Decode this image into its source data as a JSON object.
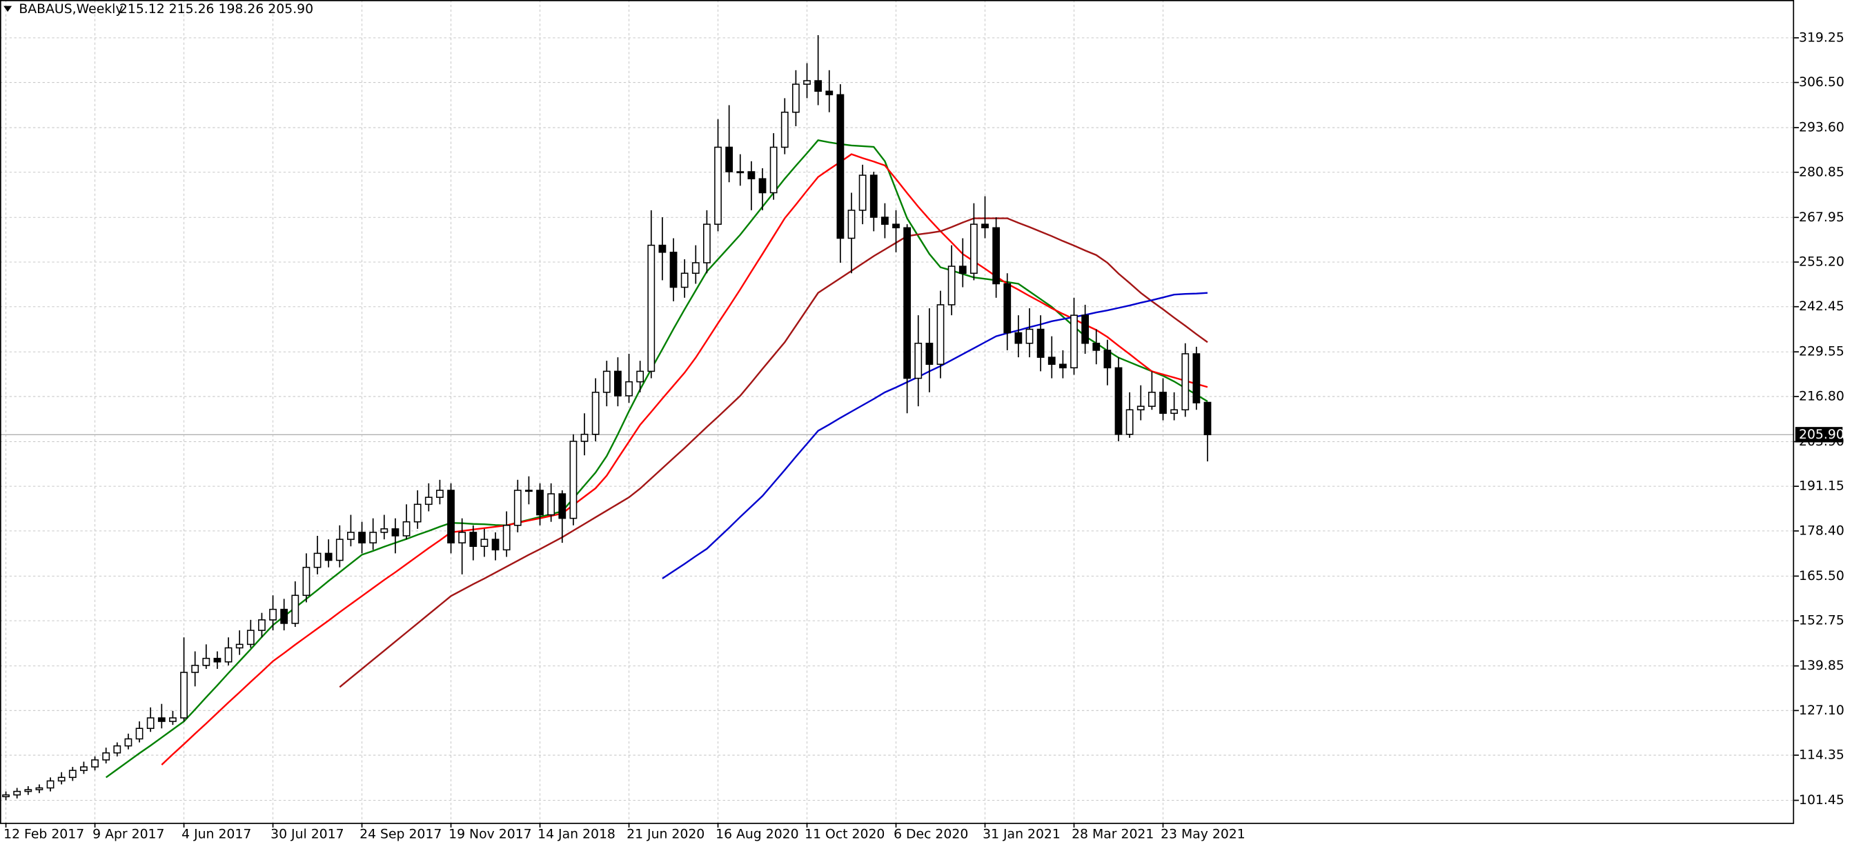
{
  "chart_data": {
    "type": "candlestick",
    "title": "BABAUS,Weekly",
    "info": "215.12 215.26 198.26 205.90",
    "categories": [
      "12 Feb 2017",
      null,
      null,
      null,
      null,
      null,
      null,
      null,
      "9 Apr 2017",
      null,
      null,
      null,
      null,
      null,
      null,
      null,
      "4 Jun 2017",
      null,
      null,
      null,
      null,
      null,
      null,
      null,
      "30 Jul 2017",
      null,
      null,
      null,
      null,
      null,
      null,
      null,
      "24 Sep 2017",
      null,
      null,
      null,
      null,
      null,
      null,
      null,
      "19 Nov 2017",
      null,
      null,
      null,
      null,
      null,
      null,
      null,
      "14 Jan 2018",
      null,
      null,
      null,
      null,
      null,
      null,
      null,
      "21 Jun 2020",
      null,
      null,
      null,
      null,
      null,
      null,
      null,
      "16 Aug 2020",
      null,
      null,
      null,
      null,
      null,
      null,
      null,
      "11 Oct 2020",
      null,
      null,
      null,
      null,
      null,
      null,
      null,
      "6 Dec 2020",
      null,
      null,
      null,
      null,
      null,
      null,
      null,
      "31 Jan 2021",
      null,
      null,
      null,
      null,
      null,
      null,
      null,
      "28 Mar 2021",
      null,
      null,
      null,
      null,
      null,
      null,
      null,
      "23 May 2021",
      null,
      null,
      null,
      null
    ],
    "open": [
      102.5,
      103,
      104,
      104.5,
      105,
      107,
      108,
      110,
      111,
      113,
      115,
      117,
      119,
      122,
      125,
      124,
      125,
      138,
      140,
      142,
      141,
      145,
      146,
      150,
      153,
      156,
      152,
      160,
      168,
      172,
      170,
      176,
      178,
      175,
      178,
      179,
      177,
      181,
      186,
      188,
      190,
      175,
      178,
      174,
      176,
      173,
      180,
      190,
      190,
      183,
      189,
      182,
      204,
      206,
      218,
      224,
      217,
      221,
      224,
      260,
      258,
      248,
      252,
      255,
      266,
      288,
      281,
      281,
      279,
      275,
      288,
      298,
      306,
      307,
      304,
      303,
      262,
      270,
      280,
      268,
      266,
      265,
      222,
      232,
      226,
      243,
      254,
      252,
      266,
      265,
      249,
      235,
      232,
      236,
      228,
      226,
      225,
      240,
      232,
      230,
      225,
      206,
      213,
      214,
      218,
      212,
      213,
      229,
      215.12
    ],
    "high": [
      104,
      105,
      105.5,
      106,
      108,
      109.5,
      111,
      112.5,
      114,
      116.5,
      118,
      120.5,
      124,
      128,
      129,
      127,
      148,
      144,
      146,
      144,
      148,
      150,
      153,
      155,
      160,
      159,
      164,
      172,
      177,
      176,
      180,
      183,
      181,
      182,
      183,
      182,
      186,
      190,
      192,
      193,
      192,
      182,
      180,
      179,
      178,
      184,
      193,
      194,
      192,
      192,
      190,
      206,
      212,
      222,
      227,
      228,
      229,
      227,
      270,
      268,
      262,
      256,
      260,
      270,
      296,
      300,
      286,
      284,
      282,
      292,
      302,
      310,
      312,
      320,
      310,
      306,
      275,
      283,
      281,
      272,
      270,
      266,
      240,
      242,
      247,
      260,
      262,
      272,
      274,
      268,
      252,
      240,
      242,
      240,
      234,
      230,
      245,
      243,
      236,
      233,
      228,
      218,
      220,
      224,
      222,
      218,
      232,
      231,
      215.26
    ],
    "low": [
      101.5,
      102,
      103,
      103.5,
      104,
      106,
      107,
      109,
      110,
      112,
      114,
      116,
      118,
      121,
      122,
      123,
      124,
      134,
      139,
      139,
      140,
      143,
      145,
      148,
      150,
      150,
      151,
      158,
      166,
      168,
      168,
      174,
      172,
      173,
      176,
      172,
      176,
      179,
      184,
      186,
      172,
      166,
      170,
      171,
      170,
      171,
      178,
      186,
      180,
      181,
      175,
      180,
      200,
      204,
      214,
      214,
      215,
      218,
      222,
      250,
      244,
      245,
      249,
      252,
      264,
      278,
      277,
      270,
      270,
      273,
      286,
      294,
      302,
      300,
      298,
      255,
      252,
      266,
      264,
      262,
      258,
      212,
      214,
      218,
      222,
      240,
      248,
      250,
      262,
      245,
      230,
      228,
      228,
      224,
      222,
      222,
      223,
      229,
      226,
      220,
      204,
      205,
      210,
      213,
      210,
      210,
      211,
      213,
      198.26
    ],
    "close": [
      103,
      104,
      104.5,
      105,
      107,
      108,
      110,
      111,
      113,
      115,
      117,
      119,
      122,
      125,
      124,
      125,
      138,
      140,
      142,
      141,
      145,
      146,
      150,
      153,
      156,
      152,
      160,
      168,
      172,
      170,
      176,
      178,
      175,
      178,
      179,
      177,
      181,
      186,
      188,
      190,
      175,
      178,
      174,
      176,
      173,
      180,
      190,
      190,
      183,
      189,
      182,
      204,
      206,
      218,
      224,
      217,
      221,
      224,
      260,
      258,
      248,
      252,
      255,
      266,
      288,
      281,
      281,
      279,
      275,
      288,
      298,
      306,
      307,
      304,
      303,
      262,
      270,
      280,
      268,
      266,
      265,
      222,
      232,
      226,
      243,
      254,
      252,
      266,
      265,
      249,
      235,
      232,
      236,
      228,
      226,
      225,
      240,
      232,
      230,
      225,
      206,
      213,
      214,
      218,
      212,
      213,
      229,
      215,
      205.9
    ],
    "up_color": "#ffffff",
    "down_color": "#000000",
    "outline_color": "#000000",
    "lines": [
      {
        "color": "#008000",
        "values": [
          null,
          null,
          null,
          null,
          null,
          null,
          null,
          null,
          null,
          108,
          110.3,
          112.6,
          114.9,
          117.1,
          119.4,
          121.7,
          124,
          127.4,
          130.9,
          134.3,
          137.8,
          141.2,
          144.6,
          148.1,
          151.5,
          154,
          156.5,
          159,
          161.5,
          164.1,
          166.6,
          169.1,
          171.6,
          172.7,
          173.9,
          175,
          176.1,
          177.3,
          178.4,
          179.6,
          180.7,
          180.6,
          180.4,
          180.3,
          180.1,
          180,
          180.8,
          181.6,
          182.4,
          183.2,
          184,
          187.7,
          191.4,
          195.1,
          199.8,
          206,
          212.6,
          218.8,
          224.6,
          230.3,
          236.1,
          241.7,
          247.1,
          252.5,
          256,
          259.5,
          263,
          267,
          271,
          275,
          279,
          282.7,
          286.3,
          290,
          289.4,
          288.9,
          288.5,
          288.3,
          288.1,
          284,
          275.8,
          267.7,
          262.6,
          257.5,
          253.7,
          252.8,
          251.8,
          250.8,
          250.4,
          250,
          249.5,
          249,
          246.8,
          244.6,
          242.4,
          239.6,
          236.8,
          234,
          232,
          229.9,
          227.9,
          226.6,
          225.3,
          224,
          222.7,
          221.1,
          219.2,
          217.3,
          215.4
        ]
      },
      {
        "color": "#ff0000",
        "values": [
          null,
          null,
          null,
          null,
          null,
          null,
          null,
          null,
          null,
          null,
          null,
          null,
          null,
          null,
          111.6,
          114.6,
          117.5,
          120.5,
          123.4,
          126.4,
          129.4,
          132.3,
          135.3,
          138.2,
          141.2,
          143.5,
          145.9,
          148.2,
          150.5,
          152.8,
          155.2,
          157.5,
          159.8,
          162.1,
          164.4,
          166.6,
          168.9,
          171.2,
          173.5,
          175.7,
          178,
          178.4,
          178.8,
          179.2,
          179.6,
          180,
          180.7,
          181.4,
          182,
          182.7,
          183.4,
          185.8,
          188.2,
          190.6,
          194.2,
          199.1,
          203.9,
          208.7,
          212.4,
          216.2,
          219.9,
          223.6,
          227.9,
          232.8,
          237.7,
          242.5,
          247.4,
          252.5,
          257.5,
          262.6,
          267.7,
          271.6,
          275.6,
          279.5,
          281.7,
          283.8,
          286,
          284.9,
          283.9,
          282.8,
          278.9,
          274.9,
          271,
          267.4,
          264,
          260.8,
          257.5,
          255.4,
          253.3,
          251.1,
          249,
          247.3,
          245.5,
          243.8,
          242,
          240.4,
          238.9,
          237.3,
          235.8,
          233.8,
          231.3,
          228.9,
          226.4,
          224,
          223.1,
          222.2,
          221.3,
          220.4,
          219.5
        ]
      },
      {
        "color": "#a31515",
        "values": [
          null,
          null,
          null,
          null,
          null,
          null,
          null,
          null,
          null,
          null,
          null,
          null,
          null,
          null,
          null,
          null,
          null,
          null,
          null,
          null,
          null,
          null,
          null,
          null,
          null,
          null,
          null,
          null,
          null,
          null,
          133.8,
          136.4,
          139,
          141.6,
          144.2,
          146.8,
          149.4,
          152,
          154.6,
          157.2,
          159.8,
          161.5,
          163.2,
          164.8,
          166.5,
          168.2,
          169.9,
          171.6,
          173.2,
          174.9,
          176.6,
          178.5,
          180.4,
          182.3,
          184.2,
          186.1,
          188,
          190.5,
          193.4,
          196.3,
          199.2,
          202.1,
          205.1,
          208.1,
          211,
          214,
          217,
          220.8,
          224.7,
          228.5,
          232.3,
          237,
          241.7,
          246.4,
          248.5,
          250.6,
          252.7,
          254.8,
          256.9,
          258.8,
          260.7,
          262.6,
          263.1,
          263.5,
          264,
          265.2,
          266.5,
          267.7,
          267.7,
          267.7,
          267.7,
          266.4,
          265.2,
          263.9,
          262.6,
          261.2,
          259.9,
          258.5,
          257.2,
          255,
          251.9,
          249.2,
          246.4,
          244,
          241.7,
          239.3,
          237,
          234.6,
          232.3
        ]
      },
      {
        "color": "#0000cd",
        "values": [
          null,
          null,
          null,
          null,
          null,
          null,
          null,
          null,
          null,
          null,
          null,
          null,
          null,
          null,
          null,
          null,
          null,
          null,
          null,
          null,
          null,
          null,
          null,
          null,
          null,
          null,
          null,
          null,
          null,
          null,
          null,
          null,
          null,
          null,
          null,
          null,
          null,
          null,
          null,
          null,
          null,
          null,
          null,
          null,
          null,
          null,
          null,
          null,
          null,
          null,
          null,
          null,
          null,
          null,
          null,
          null,
          null,
          null,
          null,
          164.8,
          166.9,
          169,
          171.2,
          173.3,
          176.3,
          179.3,
          182.4,
          185.4,
          188.4,
          192.1,
          195.8,
          199.6,
          203.3,
          207,
          208.8,
          210.7,
          212.5,
          214.3,
          216.1,
          218,
          219.4,
          220.9,
          222.4,
          224,
          225.5,
          227.2,
          228.9,
          230.6,
          232.3,
          234,
          234.9,
          235.7,
          236.6,
          237.4,
          238.3,
          238.9,
          239.5,
          240.1,
          240.8,
          241.4,
          242.1,
          242.8,
          243.6,
          244.3,
          245.1,
          245.9,
          246.1,
          246.2,
          246.4
        ]
      }
    ],
    "last_price": {
      "value": 205.9,
      "label": "205.90"
    },
    "ylim": [
      95.04,
      330.05
    ],
    "yticks": [
      101.45,
      114.35,
      {
        "value": 127.1,
        "label": "127.10"
      },
      139.85,
      152.75,
      {
        "value": 165.5,
        "label": "165.50"
      },
      {
        "value": 178.4,
        "label": "178.40"
      },
      191.15,
      {
        "value": 203.9,
        "label": "203.90"
      },
      {
        "value": 216.8,
        "label": "216.80"
      },
      229.55,
      242.45,
      {
        "value": 255.2,
        "label": "255.20"
      },
      267.95,
      280.85,
      {
        "value": 293.6,
        "label": "293.60"
      },
      {
        "value": 306.5,
        "label": "306.50"
      },
      319.25
    ],
    "grid": true
  }
}
